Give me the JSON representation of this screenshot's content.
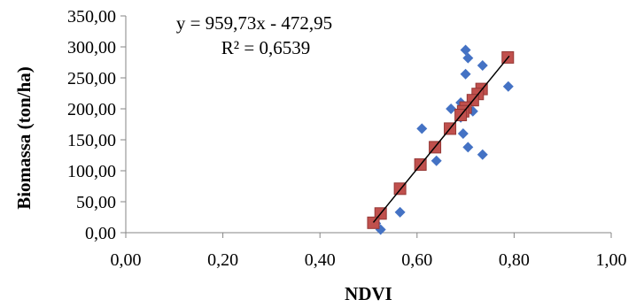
{
  "chart_data": {
    "type": "scatter",
    "xlabel": "NDVI",
    "ylabel": "Biomassa (ton/ha)",
    "xlim": [
      0,
      1
    ],
    "ylim": [
      0,
      350
    ],
    "x_ticks": [
      0,
      0.2,
      0.4,
      0.6,
      0.8,
      1.0
    ],
    "y_ticks": [
      0,
      50,
      100,
      150,
      200,
      250,
      300,
      350
    ],
    "x_tick_labels": [
      "0,00",
      "0,20",
      "0,40",
      "0,60",
      "0,80",
      "1,00"
    ],
    "y_tick_labels": [
      "0,00",
      "50,00",
      "100,00",
      "150,00",
      "200,00",
      "250,00",
      "300,00",
      "350,00"
    ],
    "grid": false,
    "legend": "none",
    "equation_text": "y = 959,73x - 472,95",
    "r2_text": "R² = 0,6539",
    "trendline": {
      "slope": 959.73,
      "intercept": -472.95,
      "x_range": [
        0.51,
        0.79
      ]
    },
    "series": [
      {
        "marker": "diamond",
        "color": "#4472c4",
        "points": [
          [
            0.7,
            295
          ],
          [
            0.705,
            282
          ],
          [
            0.7,
            256
          ],
          [
            0.735,
            270
          ],
          [
            0.788,
            236
          ],
          [
            0.69,
            210
          ],
          [
            0.695,
            200
          ],
          [
            0.67,
            200
          ],
          [
            0.715,
            196
          ],
          [
            0.69,
            186
          ],
          [
            0.61,
            168
          ],
          [
            0.695,
            160
          ],
          [
            0.64,
            116
          ],
          [
            0.705,
            138
          ],
          [
            0.735,
            126
          ],
          [
            0.565,
            33
          ],
          [
            0.515,
            15
          ],
          [
            0.525,
            5
          ]
        ]
      },
      {
        "marker": "square",
        "color": "#c0504d",
        "points": [
          [
            0.787,
            283
          ],
          [
            0.733,
            232
          ],
          [
            0.725,
            224
          ],
          [
            0.715,
            214
          ],
          [
            0.7,
            202
          ],
          [
            0.695,
            196
          ],
          [
            0.69,
            190
          ],
          [
            0.668,
            168
          ],
          [
            0.637,
            138
          ],
          [
            0.607,
            110
          ],
          [
            0.565,
            71
          ],
          [
            0.525,
            31
          ],
          [
            0.51,
            16
          ]
        ]
      }
    ],
    "colors": {
      "series_1": "#4472c4",
      "series_2": "#c0504d",
      "series_2_stroke": "#953735",
      "trendline": "#000000",
      "axis": "#858585"
    }
  }
}
